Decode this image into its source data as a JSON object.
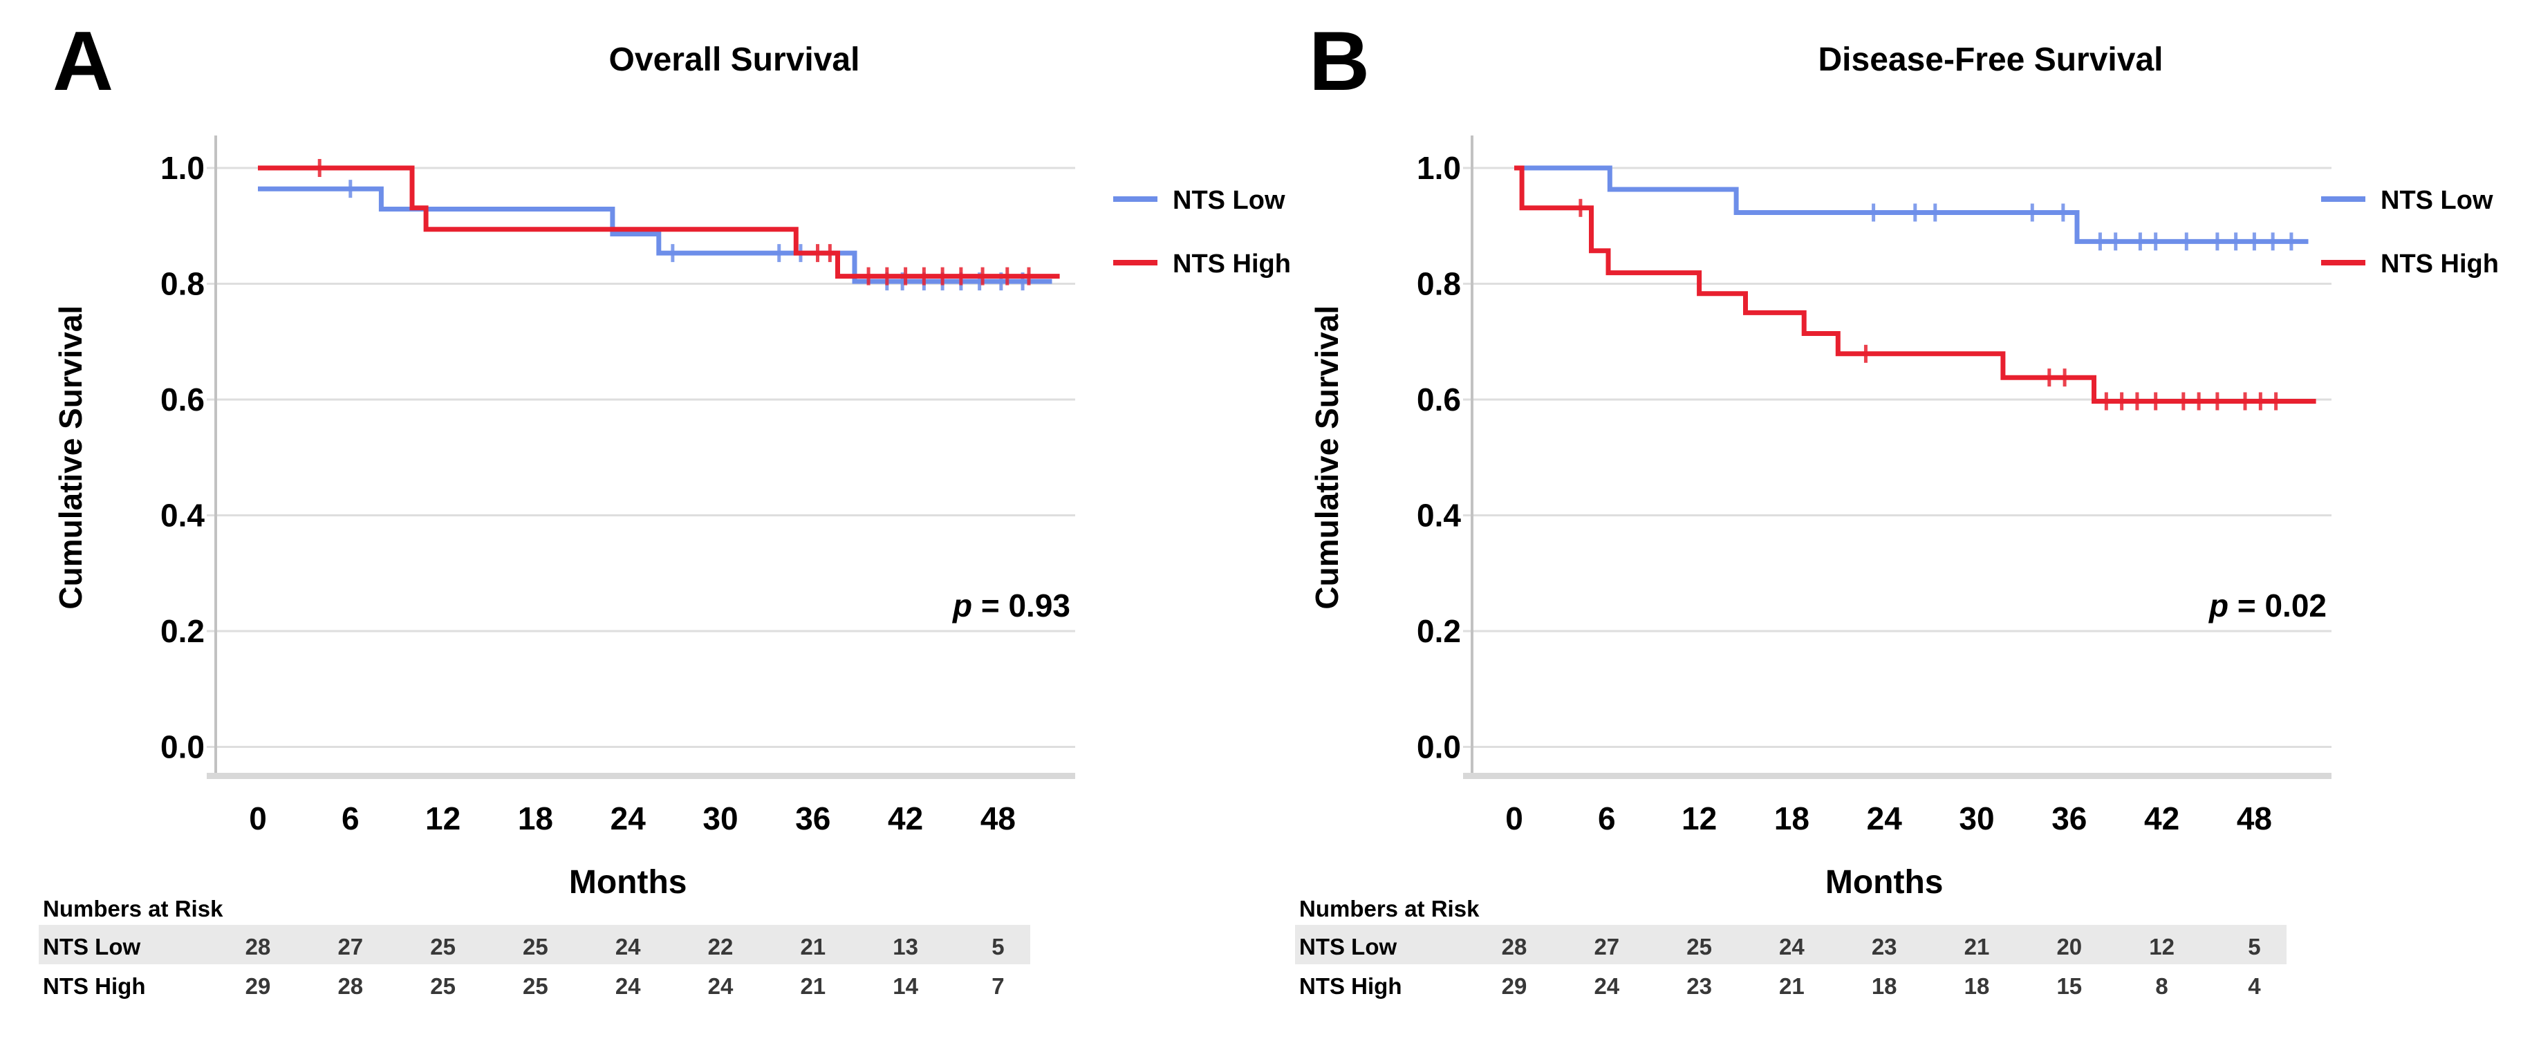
{
  "figure_caption_letters": [
    "A",
    "B"
  ],
  "chart_data": [
    {
      "type": "line",
      "subtype": "kaplan-meier-step",
      "panel_letter": "A",
      "title": "Overall Survival",
      "xlabel": "Months",
      "ylabel": "Cumulative Survival",
      "p_value_text": "p = 0.93",
      "xticks": [
        0,
        6,
        12,
        18,
        24,
        30,
        36,
        42,
        48
      ],
      "ytick_labels": [
        "1.0",
        "0.8",
        "0.6",
        "0.4",
        "0.2",
        "0.0"
      ],
      "ytick_values": [
        1.0,
        0.8,
        0.6,
        0.4,
        0.2,
        0.0
      ],
      "xlim": [
        0,
        53
      ],
      "ylim": [
        0.0,
        1.0
      ],
      "grid": true,
      "legend_position": "right",
      "series": [
        {
          "name": "NTS Low",
          "color": "#6d8ee9",
          "steps": [
            [
              0,
              0.964
            ],
            [
              8,
              0.964
            ],
            [
              8,
              0.929
            ],
            [
              23,
              0.929
            ],
            [
              23,
              0.886
            ],
            [
              26,
              0.886
            ],
            [
              26,
              0.853
            ],
            [
              38.7,
              0.853
            ],
            [
              38.7,
              0.804
            ],
            [
              51.5,
              0.804
            ]
          ],
          "censors": [
            [
              6,
              0.964
            ],
            [
              26.9,
              0.853
            ],
            [
              33.8,
              0.853
            ],
            [
              35.2,
              0.853
            ],
            [
              40.8,
              0.804
            ],
            [
              41.8,
              0.804
            ],
            [
              43.2,
              0.804
            ],
            [
              44.4,
              0.804
            ],
            [
              45.6,
              0.804
            ],
            [
              46.8,
              0.804
            ],
            [
              48.2,
              0.804
            ],
            [
              49.6,
              0.804
            ]
          ]
        },
        {
          "name": "NTS High",
          "color": "#e8202f",
          "steps": [
            [
              0,
              1.0
            ],
            [
              10,
              1.0
            ],
            [
              10,
              0.931
            ],
            [
              10.9,
              0.931
            ],
            [
              10.9,
              0.894
            ],
            [
              34.9,
              0.894
            ],
            [
              34.9,
              0.853
            ],
            [
              37.6,
              0.853
            ],
            [
              37.6,
              0.813
            ],
            [
              52,
              0.813
            ]
          ],
          "censors": [
            [
              4,
              1.0
            ],
            [
              36.3,
              0.853
            ],
            [
              37.1,
              0.853
            ],
            [
              39.6,
              0.813
            ],
            [
              40.8,
              0.813
            ],
            [
              42,
              0.813
            ],
            [
              43.2,
              0.813
            ],
            [
              44.4,
              0.813
            ],
            [
              45.6,
              0.813
            ],
            [
              47,
              0.813
            ],
            [
              48.6,
              0.813
            ],
            [
              50,
              0.813
            ]
          ]
        }
      ],
      "risk_table": {
        "header": "Numbers at Risk",
        "rows": [
          {
            "name": "NTS Low",
            "values": [
              28,
              27,
              25,
              25,
              24,
              22,
              21,
              13,
              5
            ]
          },
          {
            "name": "NTS High",
            "values": [
              29,
              28,
              25,
              25,
              24,
              24,
              21,
              14,
              7
            ]
          }
        ]
      }
    },
    {
      "type": "line",
      "subtype": "kaplan-meier-step",
      "panel_letter": "B",
      "title": "Disease-Free Survival",
      "xlabel": "Months",
      "ylabel": "Cumulative Survival",
      "p_value_text": "p = 0.02",
      "xticks": [
        0,
        6,
        12,
        18,
        24,
        30,
        36,
        42,
        48
      ],
      "ytick_labels": [
        "1.0",
        "0.8",
        "0.6",
        "0.4",
        "0.2",
        "0.0"
      ],
      "ytick_values": [
        1.0,
        0.8,
        0.6,
        0.4,
        0.2,
        0.0
      ],
      "xlim": [
        0,
        53
      ],
      "ylim": [
        0.0,
        1.0
      ],
      "grid": true,
      "legend_position": "right",
      "series": [
        {
          "name": "NTS Low",
          "color": "#6d8ee9",
          "steps": [
            [
              0,
              1.0
            ],
            [
              6.2,
              1.0
            ],
            [
              6.2,
              0.963
            ],
            [
              14.4,
              0.963
            ],
            [
              14.4,
              0.923
            ],
            [
              36.5,
              0.923
            ],
            [
              36.5,
              0.873
            ],
            [
              51.5,
              0.873
            ]
          ],
          "censors": [
            [
              23.3,
              0.923
            ],
            [
              26,
              0.923
            ],
            [
              27.3,
              0.923
            ],
            [
              33.6,
              0.923
            ],
            [
              35.6,
              0.923
            ],
            [
              38,
              0.873
            ],
            [
              39,
              0.873
            ],
            [
              40.6,
              0.873
            ],
            [
              41.6,
              0.873
            ],
            [
              43.6,
              0.873
            ],
            [
              45.6,
              0.873
            ],
            [
              46.8,
              0.873
            ],
            [
              48,
              0.873
            ],
            [
              49.2,
              0.873
            ],
            [
              50.4,
              0.873
            ]
          ]
        },
        {
          "name": "NTS High",
          "color": "#e8202f",
          "steps": [
            [
              0,
              1.0
            ],
            [
              0.5,
              1.0
            ],
            [
              0.5,
              0.931
            ],
            [
              5,
              0.931
            ],
            [
              5,
              0.857
            ],
            [
              6.1,
              0.857
            ],
            [
              6.1,
              0.819
            ],
            [
              12,
              0.819
            ],
            [
              12,
              0.783
            ],
            [
              15,
              0.783
            ],
            [
              15,
              0.75
            ],
            [
              18.8,
              0.75
            ],
            [
              18.8,
              0.714
            ],
            [
              21,
              0.714
            ],
            [
              21,
              0.679
            ],
            [
              31.7,
              0.679
            ],
            [
              31.7,
              0.638
            ],
            [
              37.6,
              0.638
            ],
            [
              37.6,
              0.597
            ],
            [
              52,
              0.597
            ]
          ],
          "censors": [
            [
              4.3,
              0.931
            ],
            [
              22.8,
              0.679
            ],
            [
              34.7,
              0.638
            ],
            [
              35.7,
              0.638
            ],
            [
              38.4,
              0.597
            ],
            [
              39.4,
              0.597
            ],
            [
              40.4,
              0.597
            ],
            [
              41.6,
              0.597
            ],
            [
              43.4,
              0.597
            ],
            [
              44.4,
              0.597
            ],
            [
              45.6,
              0.597
            ],
            [
              47.4,
              0.597
            ],
            [
              48.4,
              0.597
            ],
            [
              49.4,
              0.597
            ]
          ]
        }
      ],
      "risk_table": {
        "header": "Numbers at Risk",
        "rows": [
          {
            "name": "NTS Low",
            "values": [
              28,
              27,
              25,
              24,
              23,
              21,
              20,
              12,
              5
            ]
          },
          {
            "name": "NTS High",
            "values": [
              29,
              24,
              23,
              21,
              18,
              18,
              15,
              8,
              4
            ]
          }
        ]
      }
    }
  ],
  "colors": {
    "nts_low": "#6d8ee9",
    "nts_high": "#e8202f",
    "gridline": "#dedede",
    "axis_spine": "#c2c2c2",
    "axis_band": "#d8d8d8",
    "risk_row_band": "#e9e9e9",
    "text": "#000000",
    "risk_number_text": "#383838"
  }
}
